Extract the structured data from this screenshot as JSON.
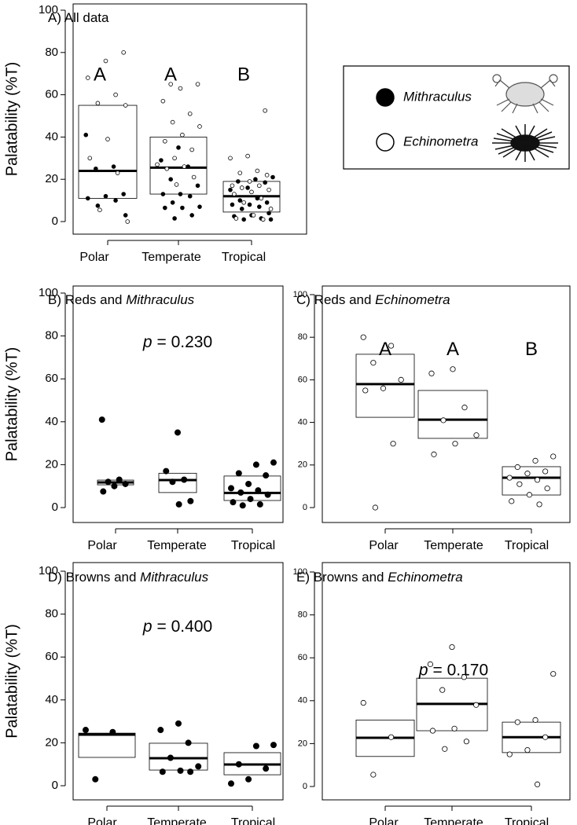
{
  "chart_data": [
    {
      "type": "box",
      "title": "A) All data",
      "ylabel": "Palatability (%T)",
      "categories": [
        "Polar",
        "Temperate",
        "Tropical"
      ],
      "ylim": [
        0,
        100
      ],
      "yticks": [
        0,
        20,
        40,
        60,
        80,
        100
      ],
      "letters": [
        "A",
        "A",
        "B"
      ],
      "boxes": [
        {
          "q1": 11,
          "median": 24,
          "q3": 55
        },
        {
          "q1": 13,
          "median": 25.5,
          "q3": 40
        },
        {
          "q1": 4.5,
          "median": 12,
          "q3": 19
        }
      ],
      "series": [
        {
          "name": "Mithraculus",
          "marker": "filled",
          "color": "#000000",
          "values": [
            [
              41,
              26,
              25,
              13,
              12,
              11,
              10,
              7.5,
              3
            ],
            [
              35,
              29,
              26,
              20,
              17,
              13,
              13,
              12,
              9,
              7,
              6.5,
              6.5,
              3,
              1.5
            ],
            [
              21,
              20,
              19,
              18.5,
              16,
              15,
              11,
              10,
              9,
              8,
              8,
              7,
              6,
              4,
              3,
              2.5,
              1.5,
              1,
              1
            ]
          ]
        },
        {
          "name": "Echinometra",
          "marker": "open",
          "color": "#000000",
          "values": [
            [
              80,
              76,
              68,
              60,
              56,
              55,
              39,
              30,
              23,
              5.5,
              0
            ],
            [
              65,
              65,
              63,
              57,
              51,
              47,
              45,
              41,
              38,
              34,
              30,
              27,
              26,
              25,
              21,
              17.5
            ],
            [
              52.5,
              31,
              30,
              24,
              23,
              22,
              19,
              17,
              17,
              16,
              15,
              14,
              13,
              11,
              9,
              6,
              3,
              1.5,
              1
            ]
          ]
        }
      ]
    },
    {
      "type": "box",
      "title": "B) Reds and ",
      "title_italic": "Mithraculus",
      "ylabel": "Palatability (%T)",
      "categories": [
        "Polar",
        "Temperate",
        "Tropical"
      ],
      "ylim": [
        0,
        100
      ],
      "yticks": [
        0,
        20,
        40,
        60,
        80,
        100
      ],
      "p_symbol": "p",
      "p_text": "= 0.230",
      "boxes": [
        {
          "q1": 10.6,
          "median": 11.7,
          "q3": 12.8
        },
        {
          "q1": 7,
          "median": 12.8,
          "q3": 16
        },
        {
          "q1": 3.3,
          "median": 6.8,
          "q3": 14.7
        }
      ],
      "series": [
        {
          "name": "Mithraculus",
          "marker": "filled",
          "color": "#000000",
          "values": [
            [
              41,
              13,
              12,
              11,
              10,
              7.5
            ],
            [
              35,
              17,
              13,
              12,
              3,
              1.5
            ],
            [
              21,
              20,
              16,
              15,
              11,
              9,
              8,
              7,
              6,
              4,
              2.5,
              1.5,
              1
            ]
          ]
        }
      ]
    },
    {
      "type": "box",
      "title": "C) Reds and ",
      "title_italic": "Echinometra",
      "categories": [
        "Polar",
        "Temperate",
        "Tropical"
      ],
      "ylim": [
        0,
        100
      ],
      "yticks": [
        0,
        20,
        40,
        60,
        80,
        100
      ],
      "letters": [
        "A",
        "A",
        "B"
      ],
      "boxes": [
        {
          "q1": 42.4,
          "median": 58,
          "q3": 72
        },
        {
          "q1": 32.5,
          "median": 41.3,
          "q3": 55
        },
        {
          "q1": 5.9,
          "median": 14,
          "q3": 19.2
        }
      ],
      "series": [
        {
          "name": "Echinometra",
          "marker": "open",
          "color": "#000000",
          "values": [
            [
              80,
              76,
              68,
              60,
              56,
              55,
              30,
              0
            ],
            [
              65,
              63,
              47,
              41,
              34,
              30,
              25
            ],
            [
              24,
              22,
              19,
              17,
              16,
              14,
              13,
              11,
              9,
              6,
              3,
              1.5
            ]
          ]
        }
      ]
    },
    {
      "type": "box",
      "title": "D) Browns and ",
      "title_italic": "Mithraculus",
      "ylabel": "Palatability (%T)",
      "categories": [
        "Polar",
        "Temperate",
        "Tropical"
      ],
      "ylim": [
        0,
        100
      ],
      "yticks": [
        0,
        20,
        40,
        60,
        80,
        100
      ],
      "p_symbol": "p",
      "p_text": "= 0.400",
      "boxes": [
        {
          "q1": 13.2,
          "median": 23.8,
          "q3": 24.5
        },
        {
          "q1": 7.3,
          "median": 12.8,
          "q3": 19.8
        },
        {
          "q1": 5.1,
          "median": 9.9,
          "q3": 15.4
        }
      ],
      "series": [
        {
          "name": "Mithraculus",
          "marker": "filled",
          "color": "#000000",
          "values": [
            [
              26,
              25,
              3
            ],
            [
              29,
              26,
              20,
              13,
              9,
              7,
              6.5,
              6.5
            ],
            [
              19,
              18.5,
              10,
              8,
              3,
              1
            ]
          ]
        }
      ]
    },
    {
      "type": "box",
      "title": "E) Browns and ",
      "title_italic": "Echinometra",
      "categories": [
        "Polar",
        "Temperate",
        "Tropical"
      ],
      "ylim": [
        0,
        100
      ],
      "yticks": [
        0,
        20,
        40,
        60,
        80,
        100
      ],
      "p_symbol": "p",
      "p_text": "= 0.170",
      "boxes": [
        {
          "q1": 14,
          "median": 22.7,
          "q3": 31
        },
        {
          "q1": 26,
          "median": 38.5,
          "q3": 50.5
        },
        {
          "q1": 15.8,
          "median": 23,
          "q3": 30
        }
      ],
      "series": [
        {
          "name": "Echinometra",
          "marker": "open",
          "color": "#000000",
          "values": [
            [
              39,
              23,
              5.5
            ],
            [
              65,
              57,
              51,
              45,
              38,
              27,
              26,
              21,
              17.5
            ],
            [
              52.5,
              31,
              30,
              23,
              17,
              15,
              1
            ]
          ]
        }
      ]
    }
  ]
}
